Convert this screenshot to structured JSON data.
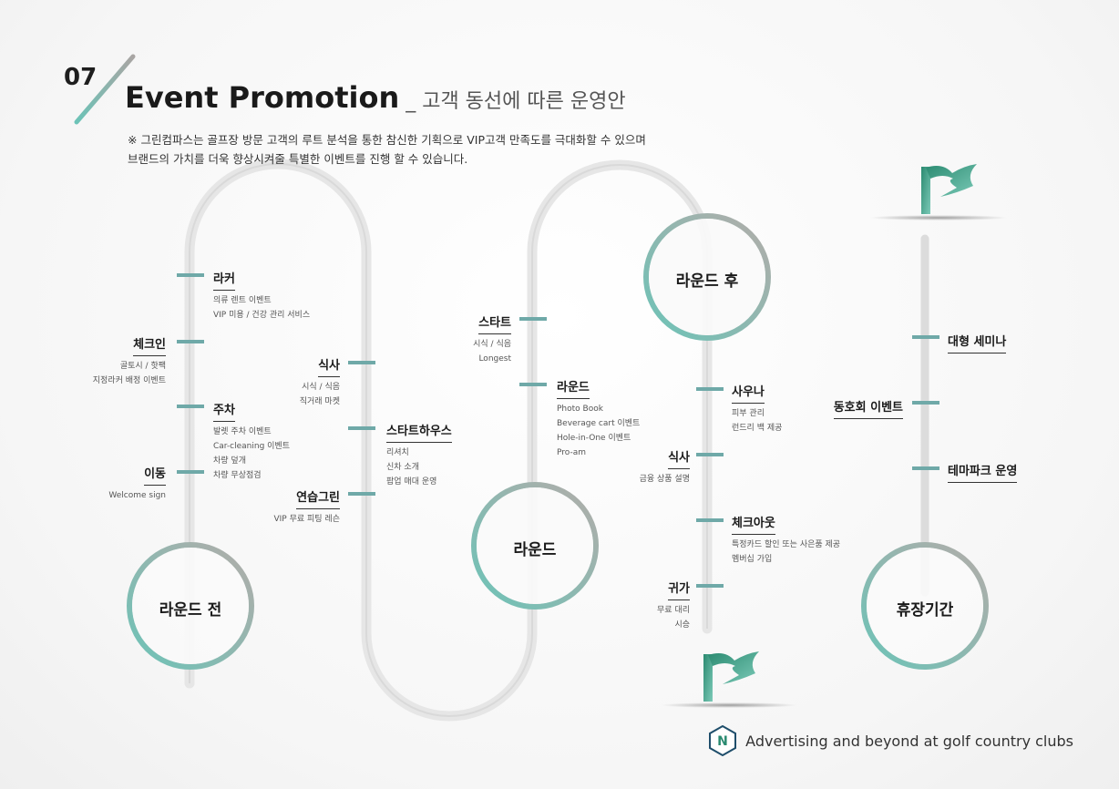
{
  "header": {
    "number": "07",
    "title": "Event Promotion",
    "subtitle": " _ 고객 동선에 따른 운영안",
    "note_line1": "※ 그린컴파스는 골프장 방문 고객의 루트 분석을 통한 참신한 기획으로 VIP고객 만족도를 극대화할 수 있으며",
    "note_line2": "브랜드의 가치를 더욱 향상시켜줄 특별한 이벤트를 진행 할 수 있습니다."
  },
  "stages": {
    "before": "라운드 전",
    "round": "라운드",
    "after": "라운드 후",
    "off": "휴장기간"
  },
  "nodes": {
    "locker": {
      "label": "라커",
      "sub1": "의류 렌트 이벤트",
      "sub2": "VIP 미용 / 건강 관리 서비스"
    },
    "checkin": {
      "label": "체크인",
      "sub1": "골토시 / 핫팩",
      "sub2": "지정라커 배정 이벤트"
    },
    "parking": {
      "label": "주차",
      "sub1": "발렛 주차 이벤트",
      "sub2": "Car-cleaning 이벤트",
      "sub3": "차량 덮개",
      "sub4": "차량 무상점검"
    },
    "move": {
      "label": "이동",
      "sub1": "Welcome sign"
    },
    "meal1": {
      "label": "식사",
      "sub1": "시식 / 식음",
      "sub2": "직거래 마켓"
    },
    "starthouse": {
      "label": "스타트하우스",
      "sub1": "리셔치",
      "sub2": "신차 소개",
      "sub3": "팝업 매대 운영"
    },
    "practice": {
      "label": "연습그린",
      "sub1": "VIP 무료 피팅 레슨"
    },
    "start": {
      "label": "스타트",
      "sub1": "시식 / 식음",
      "sub2": "Longest"
    },
    "round": {
      "label": "라운드",
      "sub1": "Photo Book",
      "sub2": "Beverage cart 이벤트",
      "sub3": "Hole-in-One 이벤트",
      "sub4": "Pro-am"
    },
    "sauna": {
      "label": "사우나",
      "sub1": "피부 관리",
      "sub2": "런드리 백 제공"
    },
    "meal2": {
      "label": "식사",
      "sub1": "금융 상품 설명"
    },
    "checkout": {
      "label": "체크아웃",
      "sub1": "특정카드 할인 또는 사은품 제공",
      "sub2": "멤버십 가입"
    },
    "home": {
      "label": "귀가",
      "sub1": "무료 대리",
      "sub2": "시승"
    },
    "seminar": {
      "label": "대형 세미나"
    },
    "club": {
      "label": "동호회 이벤트"
    },
    "themepark": {
      "label": "테마파크 운영"
    }
  },
  "footer": {
    "tagline": "Advertising and beyond at golf country clubs",
    "logo_letter": "N"
  },
  "colors": {
    "teal": "#6cc3b7",
    "gray": "#b0aaa8",
    "dark_green": "#2a8a70",
    "tick": "#6fa9a8"
  }
}
